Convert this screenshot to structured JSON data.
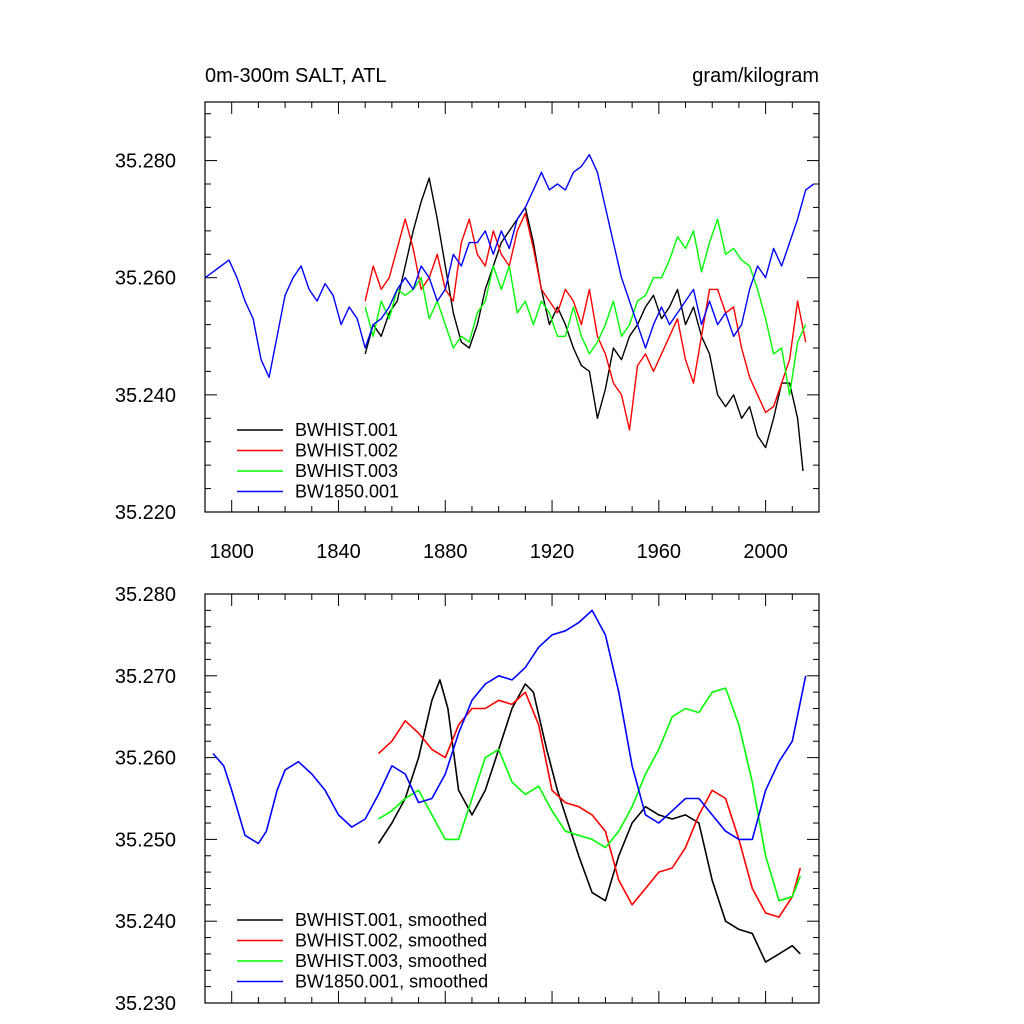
{
  "chart_data": [
    {
      "type": "line",
      "title": "0m-300m SALT, ATL",
      "units": "gram/kilogram",
      "xlim": [
        1790,
        2020
      ],
      "ylim": [
        35.22,
        35.29
      ],
      "xticks": [
        1800,
        1840,
        1880,
        1920,
        1960,
        2000
      ],
      "xtick_labels": [
        "1800",
        "1840",
        "1880",
        "1920",
        "1960",
        "2000"
      ],
      "yticks": [
        35.22,
        35.24,
        35.26,
        35.28
      ],
      "ytick_labels": [
        "35.220",
        "35.240",
        "35.260",
        "35.280"
      ],
      "legend_position": "bottom-left",
      "series": [
        {
          "name": "BWHIST.001",
          "color": "#000000",
          "x": [
            1850,
            1853,
            1856,
            1859,
            1862,
            1865,
            1868,
            1871,
            1874,
            1877,
            1880,
            1883,
            1886,
            1889,
            1892,
            1895,
            1898,
            1901,
            1904,
            1907,
            1910,
            1913,
            1916,
            1919,
            1922,
            1925,
            1928,
            1931,
            1934,
            1937,
            1940,
            1943,
            1946,
            1949,
            1952,
            1955,
            1958,
            1961,
            1964,
            1967,
            1970,
            1973,
            1976,
            1979,
            1982,
            1985,
            1988,
            1991,
            1994,
            1997,
            2000,
            2003,
            2006,
            2009,
            2012,
            2014
          ],
          "y": [
            35.247,
            35.252,
            35.25,
            35.254,
            35.256,
            35.262,
            35.268,
            35.273,
            35.277,
            35.27,
            35.262,
            35.254,
            35.249,
            35.248,
            35.252,
            35.258,
            35.262,
            35.266,
            35.268,
            35.27,
            35.272,
            35.266,
            35.258,
            35.252,
            35.255,
            35.252,
            35.248,
            35.245,
            35.244,
            35.236,
            35.241,
            35.248,
            35.246,
            35.25,
            35.252,
            35.255,
            35.257,
            35.253,
            35.255,
            35.258,
            35.252,
            35.255,
            35.25,
            35.247,
            35.24,
            35.238,
            35.24,
            35.236,
            35.238,
            35.233,
            35.231,
            35.236,
            35.242,
            35.242,
            35.236,
            35.227
          ]
        },
        {
          "name": "BWHIST.002",
          "color": "#ff0000",
          "x": [
            1850,
            1853,
            1856,
            1859,
            1862,
            1865,
            1868,
            1871,
            1874,
            1877,
            1880,
            1883,
            1886,
            1889,
            1892,
            1895,
            1898,
            1901,
            1904,
            1907,
            1910,
            1913,
            1916,
            1919,
            1922,
            1925,
            1928,
            1931,
            1934,
            1937,
            1940,
            1943,
            1946,
            1949,
            1952,
            1955,
            1958,
            1961,
            1964,
            1967,
            1970,
            1973,
            1976,
            1979,
            1982,
            1985,
            1988,
            1991,
            1994,
            1997,
            2000,
            2003,
            2006,
            2009,
            2012,
            2015
          ],
          "y": [
            35.256,
            35.262,
            35.258,
            35.26,
            35.265,
            35.27,
            35.265,
            35.258,
            35.26,
            35.264,
            35.258,
            35.256,
            35.266,
            35.27,
            35.264,
            35.262,
            35.268,
            35.264,
            35.262,
            35.268,
            35.271,
            35.265,
            35.258,
            35.256,
            35.254,
            35.258,
            35.256,
            35.252,
            35.258,
            35.25,
            35.247,
            35.242,
            35.24,
            35.234,
            35.245,
            35.247,
            35.244,
            35.247,
            35.25,
            35.253,
            35.246,
            35.242,
            35.25,
            35.258,
            35.258,
            35.254,
            35.255,
            35.248,
            35.243,
            35.24,
            35.237,
            35.238,
            35.242,
            35.246,
            35.256,
            35.249
          ]
        },
        {
          "name": "BWHIST.003",
          "color": "#00ff00",
          "x": [
            1850,
            1853,
            1856,
            1859,
            1862,
            1865,
            1868,
            1871,
            1874,
            1877,
            1880,
            1883,
            1886,
            1889,
            1892,
            1895,
            1898,
            1901,
            1904,
            1907,
            1910,
            1913,
            1916,
            1919,
            1922,
            1925,
            1928,
            1931,
            1934,
            1937,
            1940,
            1943,
            1946,
            1949,
            1952,
            1955,
            1958,
            1961,
            1964,
            1967,
            1970,
            1973,
            1976,
            1979,
            1982,
            1985,
            1988,
            1991,
            1994,
            1997,
            2000,
            2003,
            2006,
            2009,
            2012,
            2015
          ],
          "y": [
            35.255,
            35.25,
            35.256,
            35.253,
            35.258,
            35.257,
            35.258,
            35.26,
            35.253,
            35.256,
            35.252,
            35.248,
            35.25,
            35.249,
            35.254,
            35.256,
            35.262,
            35.258,
            35.262,
            35.254,
            35.256,
            35.252,
            35.256,
            35.254,
            35.25,
            35.25,
            35.255,
            35.25,
            35.247,
            35.249,
            35.252,
            35.256,
            35.25,
            35.252,
            35.256,
            35.257,
            35.26,
            35.26,
            35.263,
            35.267,
            35.265,
            35.268,
            35.261,
            35.266,
            35.27,
            35.264,
            35.265,
            35.263,
            35.262,
            35.258,
            35.253,
            35.247,
            35.248,
            35.24,
            35.249,
            35.252
          ]
        },
        {
          "name": "BW1850.001",
          "color": "#0000ff",
          "x": [
            1790,
            1793,
            1796,
            1799,
            1802,
            1805,
            1808,
            1811,
            1814,
            1817,
            1820,
            1823,
            1826,
            1829,
            1832,
            1835,
            1838,
            1841,
            1844,
            1847,
            1850,
            1853,
            1856,
            1859,
            1862,
            1865,
            1868,
            1871,
            1874,
            1877,
            1880,
            1883,
            1886,
            1889,
            1892,
            1895,
            1898,
            1901,
            1904,
            1907,
            1910,
            1913,
            1916,
            1919,
            1922,
            1925,
            1928,
            1931,
            1934,
            1937,
            1940,
            1943,
            1946,
            1949,
            1952,
            1955,
            1958,
            1961,
            1964,
            1967,
            1970,
            1973,
            1976,
            1979,
            1982,
            1985,
            1988,
            1991,
            1994,
            1997,
            2000,
            2003,
            2006,
            2009,
            2012,
            2015,
            2018
          ],
          "y": [
            35.26,
            35.261,
            35.262,
            35.263,
            35.26,
            35.256,
            35.253,
            35.246,
            35.243,
            35.25,
            35.257,
            35.26,
            35.262,
            35.258,
            35.256,
            35.259,
            35.257,
            35.252,
            35.255,
            35.253,
            35.248,
            35.252,
            35.253,
            35.255,
            35.258,
            35.26,
            35.258,
            35.262,
            35.26,
            35.256,
            35.258,
            35.264,
            35.262,
            35.266,
            35.266,
            35.268,
            35.264,
            35.268,
            35.265,
            35.27,
            35.272,
            35.275,
            35.278,
            35.275,
            35.276,
            35.275,
            35.278,
            35.279,
            35.281,
            35.278,
            35.272,
            35.266,
            35.26,
            35.256,
            35.252,
            35.248,
            35.252,
            35.255,
            35.252,
            35.254,
            35.256,
            35.258,
            35.252,
            35.256,
            35.252,
            35.254,
            35.25,
            35.252,
            35.258,
            35.262,
            35.26,
            35.265,
            35.262,
            35.266,
            35.27,
            35.275,
            35.276
          ]
        }
      ]
    },
    {
      "type": "line",
      "title": "",
      "xlim": [
        1790,
        2020
      ],
      "ylim": [
        35.23,
        35.28
      ],
      "xticks": [
        1800,
        1840,
        1880,
        1920,
        1960,
        2000
      ],
      "xtick_labels": [],
      "yticks": [
        35.23,
        35.24,
        35.25,
        35.26,
        35.27,
        35.28
      ],
      "ytick_labels": [
        "35.230",
        "35.240",
        "35.250",
        "35.260",
        "35.270",
        "35.280"
      ],
      "legend_position": "bottom-left",
      "series": [
        {
          "name": "BWHIST.001, smoothed",
          "color": "#000000",
          "x": [
            1855,
            1860,
            1865,
            1870,
            1875,
            1878,
            1881,
            1885,
            1890,
            1895,
            1900,
            1905,
            1910,
            1913,
            1918,
            1922,
            1925,
            1930,
            1935,
            1940,
            1945,
            1950,
            1955,
            1960,
            1965,
            1970,
            1975,
            1980,
            1985,
            1990,
            1995,
            2000,
            2005,
            2010,
            2013
          ],
          "y": [
            35.2495,
            35.252,
            35.255,
            35.26,
            35.267,
            35.2695,
            35.266,
            35.256,
            35.253,
            35.256,
            35.261,
            35.266,
            35.269,
            35.268,
            35.261,
            35.256,
            35.253,
            35.248,
            35.2435,
            35.2425,
            35.248,
            35.252,
            35.254,
            35.253,
            35.2525,
            35.253,
            35.252,
            35.245,
            35.24,
            35.239,
            35.2385,
            35.235,
            35.236,
            35.237,
            35.236
          ]
        },
        {
          "name": "BWHIST.002, smoothed",
          "color": "#ff0000",
          "x": [
            1855,
            1860,
            1865,
            1870,
            1875,
            1880,
            1885,
            1890,
            1895,
            1900,
            1905,
            1910,
            1915,
            1920,
            1925,
            1930,
            1935,
            1940,
            1945,
            1950,
            1955,
            1960,
            1965,
            1970,
            1975,
            1980,
            1985,
            1990,
            1995,
            2000,
            2005,
            2010,
            2013
          ],
          "y": [
            35.2605,
            35.262,
            35.2645,
            35.263,
            35.261,
            35.26,
            35.264,
            35.266,
            35.266,
            35.267,
            35.2665,
            35.268,
            35.264,
            35.256,
            35.2545,
            35.254,
            35.253,
            35.251,
            35.245,
            35.242,
            35.244,
            35.246,
            35.2465,
            35.249,
            35.253,
            35.256,
            35.255,
            35.25,
            35.244,
            35.241,
            35.2405,
            35.243,
            35.2465
          ]
        },
        {
          "name": "BWHIST.003, smoothed",
          "color": "#00ff00",
          "x": [
            1855,
            1860,
            1865,
            1870,
            1875,
            1880,
            1885,
            1890,
            1895,
            1900,
            1905,
            1910,
            1915,
            1920,
            1925,
            1930,
            1935,
            1940,
            1945,
            1950,
            1955,
            1960,
            1965,
            1970,
            1975,
            1980,
            1985,
            1990,
            1995,
            2000,
            2005,
            2010,
            2013
          ],
          "y": [
            35.2525,
            35.2535,
            35.255,
            35.256,
            35.253,
            35.25,
            35.25,
            35.255,
            35.26,
            35.261,
            35.257,
            35.2555,
            35.2565,
            35.2535,
            35.251,
            35.2505,
            35.25,
            35.249,
            35.251,
            35.254,
            35.258,
            35.261,
            35.265,
            35.266,
            35.2655,
            35.268,
            35.2685,
            35.264,
            35.257,
            35.248,
            35.2425,
            35.243,
            35.2455
          ]
        },
        {
          "name": "BW1850.001, smoothed",
          "color": "#0000ff",
          "x": [
            1793,
            1797,
            1800,
            1805,
            1810,
            1813,
            1817,
            1820,
            1825,
            1830,
            1835,
            1840,
            1845,
            1850,
            1855,
            1860,
            1865,
            1870,
            1875,
            1880,
            1885,
            1890,
            1895,
            1900,
            1905,
            1910,
            1915,
            1920,
            1925,
            1930,
            1935,
            1940,
            1945,
            1950,
            1955,
            1960,
            1965,
            1970,
            1975,
            1980,
            1985,
            1990,
            1995,
            2000,
            2005,
            2010,
            2015
          ],
          "y": [
            35.2605,
            35.259,
            35.256,
            35.2505,
            35.2495,
            35.251,
            35.256,
            35.2585,
            35.2595,
            35.258,
            35.256,
            35.253,
            35.2515,
            35.2525,
            35.2555,
            35.259,
            35.258,
            35.2545,
            35.255,
            35.258,
            35.263,
            35.267,
            35.269,
            35.27,
            35.2695,
            35.271,
            35.2735,
            35.275,
            35.2755,
            35.2765,
            35.278,
            35.275,
            35.268,
            35.259,
            35.253,
            35.252,
            35.2535,
            35.255,
            35.255,
            35.253,
            35.251,
            35.25,
            35.25,
            35.256,
            35.2595,
            35.262,
            35.27
          ]
        }
      ]
    }
  ]
}
